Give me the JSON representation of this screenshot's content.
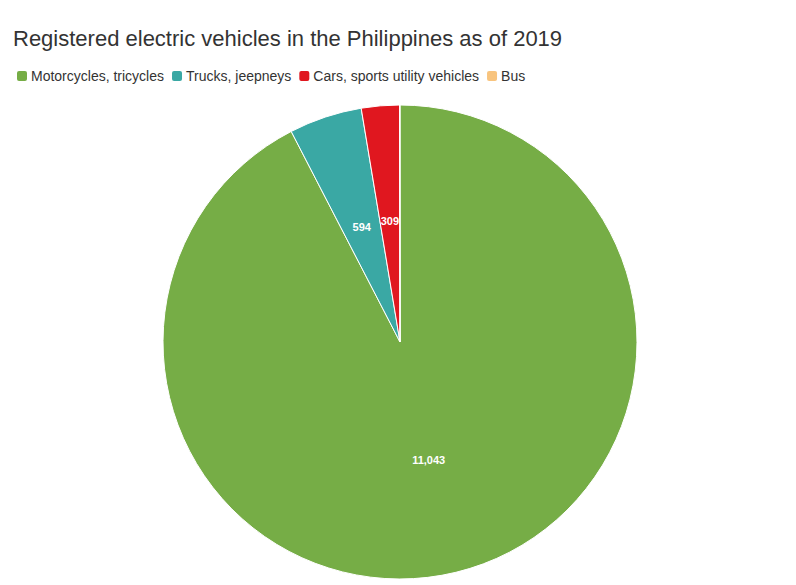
{
  "chart_data": {
    "type": "pie",
    "title": "Registered electric vehicles in the Philippines as of 2019",
    "categories": [
      "Motorcycles, tricycles",
      "Trucks, jeepneys",
      "Cars, sports utility vehicles",
      "Bus"
    ],
    "values": [
      11043,
      594,
      309,
      4
    ],
    "value_labels": [
      "11,043",
      "594",
      "309",
      null
    ],
    "colors": [
      "#76ad46",
      "#3aa8a4",
      "#e0171f",
      "#f8c47e"
    ],
    "data_labels": true,
    "legend": "top-left"
  }
}
